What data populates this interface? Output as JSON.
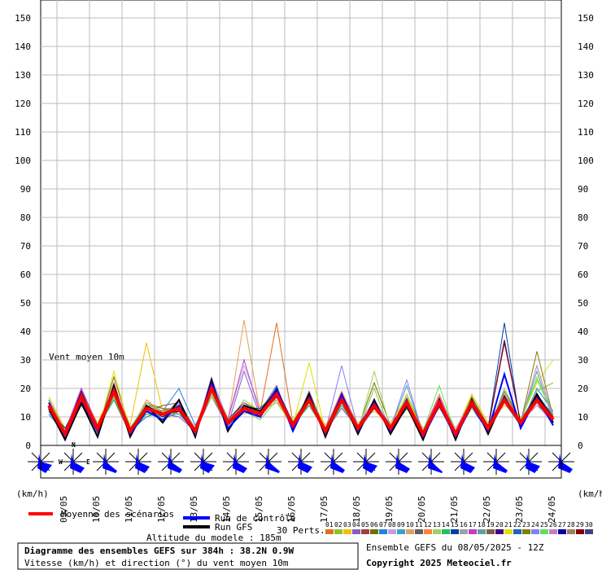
{
  "chart_data": {
    "type": "line",
    "annotation": "Vent moyen 10m",
    "yunit": "(km/h)",
    "compass": [
      "N",
      "W",
      "E"
    ],
    "perts_label": "30 Perts.",
    "altitude": "Altitude du modele : 185m",
    "title": "Diagramme des ensembles GEFS sur 384h : 38.2N 0.9W",
    "subtitle": "Vitesse (km/h) et direction (°) du vent moyen 10m",
    "run": "Ensemble GEFS du 08/05/2025 - 12Z",
    "copyright": "Copyright 2025 Meteociel.fr",
    "xlim": [
      0,
      384
    ],
    "xticks": [
      {
        "value": 12,
        "label": "09/05"
      },
      {
        "value": 36,
        "label": "10/05"
      },
      {
        "value": 60,
        "label": "11/05"
      },
      {
        "value": 84,
        "label": "12/05"
      },
      {
        "value": 108,
        "label": "13/05"
      },
      {
        "value": 132,
        "label": "14/05"
      },
      {
        "value": 156,
        "label": "15/05"
      },
      {
        "value": 180,
        "label": "16/05"
      },
      {
        "value": 204,
        "label": "17/05"
      },
      {
        "value": 228,
        "label": "18/05"
      },
      {
        "value": 252,
        "label": "19/05"
      },
      {
        "value": 276,
        "label": "20/05"
      },
      {
        "value": 300,
        "label": "21/05"
      },
      {
        "value": 324,
        "label": "22/05"
      },
      {
        "value": 348,
        "label": "23/05"
      },
      {
        "value": 372,
        "label": "24/05"
      }
    ],
    "ylim": [
      0,
      150
    ],
    "yticks": [
      0,
      10,
      20,
      30,
      40,
      50,
      60,
      70,
      80,
      90,
      100,
      110,
      120,
      130,
      140,
      150
    ],
    "grid": true,
    "x": [
      6,
      18,
      30,
      42,
      54,
      66,
      78,
      90,
      102,
      114,
      126,
      138,
      150,
      162,
      174,
      186,
      198,
      210,
      222,
      234,
      246,
      258,
      270,
      282,
      294,
      306,
      318,
      330,
      342,
      354,
      366,
      378
    ],
    "series": [
      {
        "name": "Moyenne des scénarios",
        "color": "#ff0000",
        "values": [
          14,
          4,
          17,
          6,
          19,
          5,
          13,
          11,
          13,
          5,
          20,
          8,
          13,
          11,
          18,
          7,
          16,
          5,
          16,
          6,
          14,
          6,
          15,
          4,
          15,
          4,
          15,
          6,
          16,
          8,
          16,
          9
        ]
      },
      {
        "name": "Run de contrôle",
        "color": "#0000ff",
        "values": [
          15,
          3,
          16,
          5,
          20,
          4,
          12,
          9,
          14,
          4,
          22,
          6,
          12,
          10,
          20,
          5,
          17,
          4,
          18,
          5,
          15,
          5,
          16,
          3,
          14,
          3,
          14,
          5,
          25,
          6,
          17,
          7
        ]
      },
      {
        "name": "Run GFS",
        "color": "#000000",
        "values": [
          13,
          2,
          15,
          3,
          21,
          3,
          14,
          8,
          16,
          3,
          23,
          5,
          14,
          12,
          19,
          6,
          18,
          3,
          17,
          4,
          16,
          4,
          14,
          2,
          16,
          2,
          16,
          4,
          17,
          7,
          18,
          8
        ]
      },
      {
        "name": "01",
        "color": "#e07020",
        "values": [
          16,
          5,
          19,
          7,
          17,
          6,
          15,
          13,
          11,
          6,
          18,
          9,
          15,
          12,
          43,
          8,
          14,
          6,
          15,
          7,
          13,
          7,
          16,
          5,
          17,
          5,
          13,
          7,
          18,
          9,
          14,
          10
        ]
      },
      {
        "name": "02",
        "color": "#90c030",
        "values": [
          12,
          3,
          14,
          5,
          22,
          4,
          11,
          10,
          12,
          4,
          19,
          7,
          12,
          9,
          16,
          6,
          18,
          4,
          14,
          5,
          20,
          5,
          13,
          3,
          14,
          3,
          16,
          5,
          15,
          7,
          19,
          22
        ]
      },
      {
        "name": "03",
        "color": "#f0c000",
        "values": [
          17,
          6,
          18,
          8,
          20,
          7,
          36,
          12,
          14,
          6,
          21,
          10,
          11,
          13,
          15,
          9,
          17,
          7,
          17,
          8,
          12,
          8,
          17,
          6,
          13,
          5,
          18,
          8,
          14,
          10,
          15,
          8
        ]
      },
      {
        "name": "04",
        "color": "#8060c0",
        "values": [
          13,
          4,
          16,
          4,
          18,
          5,
          14,
          11,
          10,
          5,
          17,
          7,
          26,
          10,
          19,
          6,
          15,
          5,
          13,
          6,
          15,
          6,
          14,
          4,
          16,
          4,
          14,
          6,
          17,
          9,
          17,
          11
        ]
      },
      {
        "name": "05",
        "color": "#a04040",
        "values": [
          15,
          5,
          20,
          6,
          16,
          4,
          12,
          14,
          15,
          6,
          22,
          9,
          14,
          11,
          17,
          8,
          16,
          6,
          18,
          7,
          14,
          5,
          18,
          5,
          15,
          4,
          15,
          7,
          16,
          8,
          16,
          9
        ]
      },
      {
        "name": "06",
        "color": "#707000",
        "values": [
          14,
          3,
          15,
          5,
          24,
          6,
          13,
          9,
          12,
          4,
          20,
          8,
          15,
          12,
          20,
          7,
          14,
          5,
          16,
          6,
          22,
          7,
          16,
          4,
          14,
          3,
          17,
          6,
          19,
          9,
          18,
          10
        ]
      },
      {
        "name": "07",
        "color": "#2080e0",
        "values": [
          11,
          4,
          17,
          7,
          19,
          5,
          10,
          12,
          20,
          7,
          19,
          8,
          12,
          10,
          18,
          6,
          17,
          4,
          15,
          5,
          13,
          6,
          15,
          5,
          16,
          4,
          13,
          5,
          15,
          7,
          20,
          12
        ]
      },
      {
        "name": "08",
        "color": "#c0a0e0",
        "values": [
          16,
          5,
          18,
          6,
          21,
          6,
          15,
          11,
          13,
          5,
          24,
          9,
          28,
          13,
          16,
          8,
          15,
          6,
          14,
          7,
          16,
          7,
          14,
          4,
          17,
          6,
          16,
          6,
          18,
          8,
          14,
          8
        ]
      },
      {
        "name": "09",
        "color": "#40a0c0",
        "values": [
          13,
          4,
          16,
          5,
          17,
          4,
          14,
          10,
          11,
          5,
          18,
          7,
          13,
          11,
          19,
          7,
          18,
          5,
          17,
          6,
          14,
          6,
          21,
          4,
          15,
          4,
          15,
          6,
          16,
          8,
          26,
          9
        ]
      },
      {
        "name": "10",
        "color": "#e0a060",
        "values": [
          14,
          5,
          17,
          6,
          20,
          5,
          13,
          12,
          14,
          6,
          20,
          8,
          44,
          11,
          18,
          7,
          16,
          5,
          16,
          6,
          14,
          6,
          15,
          4,
          15,
          4,
          15,
          6,
          16,
          8,
          16,
          9
        ]
      },
      {
        "name": "11",
        "color": "#606060",
        "values": [
          15,
          4,
          14,
          6,
          18,
          6,
          12,
          10,
          16,
          5,
          21,
          7,
          13,
          12,
          21,
          6,
          19,
          5,
          15,
          6,
          15,
          5,
          16,
          3,
          16,
          5,
          14,
          6,
          17,
          9,
          15,
          10
        ]
      },
      {
        "name": "12",
        "color": "#ff8040",
        "values": [
          12,
          3,
          19,
          5,
          22,
          5,
          16,
          11,
          12,
          4,
          19,
          9,
          14,
          10,
          17,
          8,
          15,
          6,
          19,
          7,
          13,
          7,
          14,
          5,
          18,
          4,
          16,
          7,
          15,
          8,
          17,
          8
        ]
      },
      {
        "name": "13",
        "color": "#a0d060",
        "values": [
          16,
          5,
          16,
          7,
          19,
          4,
          14,
          13,
          13,
          6,
          17,
          8,
          16,
          12,
          15,
          7,
          17,
          4,
          16,
          5,
          26,
          6,
          17,
          4,
          14,
          3,
          15,
          5,
          20,
          9,
          24,
          11
        ]
      },
      {
        "name": "14",
        "color": "#20c060",
        "values": [
          14,
          4,
          18,
          6,
          16,
          5,
          11,
          10,
          15,
          5,
          22,
          8,
          12,
          11,
          18,
          7,
          14,
          5,
          14,
          6,
          14,
          6,
          15,
          4,
          15,
          4,
          17,
          6,
          16,
          8,
          16,
          9
        ]
      },
      {
        "name": "15",
        "color": "#0040a0",
        "values": [
          13,
          6,
          17,
          5,
          20,
          6,
          13,
          12,
          14,
          5,
          20,
          7,
          13,
          13,
          19,
          6,
          16,
          6,
          17,
          7,
          15,
          5,
          13,
          5,
          16,
          5,
          14,
          6,
          43,
          7,
          18,
          10
        ]
      },
      {
        "name": "16",
        "color": "#a0a0a0",
        "values": [
          15,
          3,
          15,
          6,
          18,
          5,
          15,
          11,
          12,
          4,
          21,
          8,
          14,
          10,
          17,
          8,
          18,
          5,
          16,
          6,
          13,
          7,
          16,
          4,
          15,
          3,
          15,
          7,
          16,
          8,
          15,
          9
        ]
      },
      {
        "name": "17",
        "color": "#c040c0",
        "values": [
          14,
          5,
          20,
          7,
          21,
          6,
          12,
          12,
          13,
          6,
          19,
          9,
          30,
          11,
          20,
          7,
          15,
          4,
          18,
          6,
          14,
          6,
          15,
          5,
          17,
          4,
          16,
          6,
          15,
          9,
          16,
          8
        ]
      },
      {
        "name": "18",
        "color": "#60a0a0",
        "values": [
          16,
          4,
          16,
          5,
          19,
          4,
          14,
          10,
          14,
          5,
          23,
          8,
          13,
          12,
          18,
          6,
          17,
          5,
          15,
          5,
          16,
          5,
          14,
          4,
          14,
          4,
          14,
          5,
          17,
          8,
          17,
          10
        ]
      },
      {
        "name": "19",
        "color": "#806040",
        "values": [
          13,
          4,
          18,
          6,
          17,
          5,
          13,
          11,
          12,
          5,
          18,
          7,
          12,
          11,
          17,
          7,
          16,
          6,
          16,
          7,
          14,
          6,
          15,
          3,
          15,
          5,
          15,
          6,
          16,
          7,
          16,
          9
        ]
      },
      {
        "name": "20",
        "color": "#400080",
        "values": [
          15,
          5,
          17,
          7,
          20,
          6,
          14,
          10,
          15,
          4,
          20,
          9,
          15,
          10,
          19,
          8,
          15,
          5,
          17,
          6,
          15,
          7,
          16,
          4,
          16,
          4,
          16,
          6,
          37,
          8,
          15,
          8
        ]
      },
      {
        "name": "21",
        "color": "#e0e000",
        "values": [
          14,
          3,
          16,
          5,
          26,
          5,
          13,
          12,
          13,
          6,
          19,
          8,
          14,
          11,
          18,
          7,
          29,
          5,
          16,
          6,
          14,
          6,
          18,
          4,
          15,
          4,
          13,
          6,
          16,
          9,
          22,
          30
        ]
      },
      {
        "name": "22",
        "color": "#2060c0",
        "values": [
          12,
          4,
          17,
          6,
          18,
          4,
          12,
          11,
          14,
          5,
          21,
          7,
          13,
          12,
          20,
          6,
          16,
          4,
          15,
          5,
          15,
          5,
          15,
          5,
          14,
          3,
          15,
          5,
          17,
          8,
          16,
          9
        ]
      },
      {
        "name": "23",
        "color": "#808000",
        "values": [
          16,
          5,
          15,
          6,
          19,
          6,
          14,
          13,
          12,
          5,
          20,
          8,
          12,
          10,
          17,
          8,
          17,
          6,
          16,
          7,
          13,
          7,
          14,
          4,
          16,
          4,
          17,
          7,
          16,
          8,
          33,
          10
        ]
      },
      {
        "name": "24",
        "color": "#8080ff",
        "values": [
          14,
          4,
          18,
          5,
          20,
          5,
          13,
          10,
          14,
          4,
          22,
          9,
          14,
          11,
          19,
          7,
          15,
          5,
          28,
          6,
          16,
          6,
          23,
          4,
          15,
          5,
          15,
          6,
          18,
          7,
          17,
          9
        ]
      },
      {
        "name": "25",
        "color": "#60e060",
        "values": [
          15,
          5,
          16,
          7,
          17,
          6,
          15,
          12,
          13,
          6,
          18,
          8,
          13,
          12,
          18,
          6,
          18,
          5,
          15,
          6,
          14,
          5,
          15,
          5,
          21,
          4,
          16,
          6,
          15,
          9,
          23,
          11
        ]
      },
      {
        "name": "26",
        "color": "#c080c0",
        "values": [
          13,
          3,
          17,
          6,
          21,
          5,
          12,
          11,
          15,
          5,
          20,
          7,
          15,
          10,
          17,
          7,
          16,
          6,
          16,
          5,
          15,
          6,
          14,
          3,
          15,
          4,
          14,
          5,
          16,
          8,
          28,
          10
        ]
      },
      {
        "name": "27",
        "color": "#0000a0",
        "values": [
          14,
          4,
          19,
          5,
          19,
          4,
          14,
          11,
          12,
          4,
          21,
          8,
          12,
          11,
          20,
          8,
          17,
          4,
          17,
          6,
          13,
          6,
          16,
          4,
          14,
          3,
          15,
          7,
          17,
          8,
          16,
          8
        ]
      },
      {
        "name": "28",
        "color": "#a08060",
        "values": [
          16,
          5,
          16,
          6,
          18,
          6,
          13,
          12,
          14,
          6,
          19,
          9,
          14,
          12,
          18,
          6,
          15,
          5,
          15,
          7,
          14,
          7,
          15,
          5,
          16,
          5,
          16,
          6,
          16,
          9,
          15,
          9
        ]
      },
      {
        "name": "29",
        "color": "#800000",
        "values": [
          15,
          4,
          17,
          7,
          20,
          5,
          14,
          10,
          13,
          5,
          22,
          8,
          13,
          11,
          17,
          7,
          16,
          6,
          16,
          6,
          15,
          6,
          15,
          4,
          15,
          4,
          15,
          6,
          36,
          8,
          17,
          10
        ]
      },
      {
        "name": "30",
        "color": "#404080",
        "values": [
          13,
          5,
          18,
          6,
          19,
          6,
          13,
          11,
          14,
          5,
          20,
          7,
          14,
          10,
          19,
          8,
          17,
          5,
          17,
          5,
          14,
          5,
          16,
          4,
          15,
          4,
          14,
          5,
          16,
          8,
          16,
          9
        ]
      }
    ]
  }
}
